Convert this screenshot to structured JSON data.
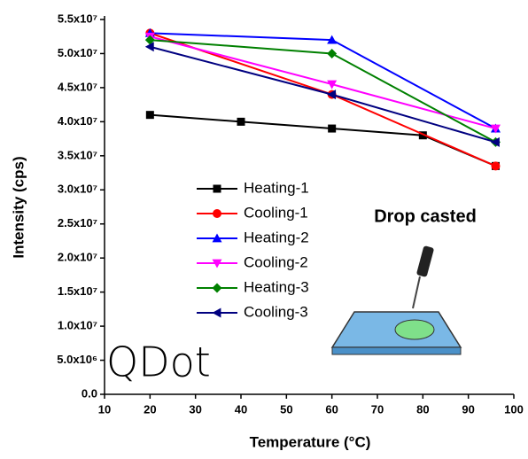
{
  "chart_data": {
    "type": "line",
    "x_label": "Temperature (°C)",
    "y_label": "Intensity (cps)",
    "xlim": [
      10,
      100
    ],
    "xticks": [
      10,
      20,
      30,
      40,
      50,
      60,
      70,
      80,
      90,
      100
    ],
    "ylim": [
      0,
      55000000
    ],
    "yticks": [
      {
        "value": 0,
        "label": "0.0"
      },
      {
        "value": 5000000,
        "label": "5.0x10⁶"
      },
      {
        "value": 10000000,
        "label": "1.0x10⁷"
      },
      {
        "value": 15000000,
        "label": "1.5x10⁷"
      },
      {
        "value": 20000000,
        "label": "2.0x10⁷"
      },
      {
        "value": 25000000,
        "label": "2.5x10⁷"
      },
      {
        "value": 30000000,
        "label": "3.0x10⁷"
      },
      {
        "value": 35000000,
        "label": "3.5x10⁷"
      },
      {
        "value": 40000000,
        "label": "4.0x10⁷"
      },
      {
        "value": 45000000,
        "label": "4.5x10⁷"
      },
      {
        "value": 50000000,
        "label": "5.0x10⁷"
      },
      {
        "value": 55000000,
        "label": "5.5x10⁷"
      }
    ],
    "legend": "center-left",
    "series": [
      {
        "name": "Heating-1",
        "color": "#000000",
        "marker": "square",
        "x": [
          20,
          40,
          60,
          80,
          96
        ],
        "values": [
          41000000,
          40000000,
          39000000,
          38000000,
          33500000
        ]
      },
      {
        "name": "Cooling-1",
        "color": "#ff0000",
        "marker": "circle",
        "x": [
          20,
          60,
          96
        ],
        "values": [
          53000000,
          44000000,
          33500000
        ]
      },
      {
        "name": "Heating-2",
        "color": "#0000ff",
        "marker": "triangle-up",
        "x": [
          20,
          60,
          96
        ],
        "values": [
          53000000,
          52000000,
          39000000
        ]
      },
      {
        "name": "Cooling-2",
        "color": "#ff00ff",
        "marker": "triangle-down",
        "x": [
          20,
          60,
          96
        ],
        "values": [
          52500000,
          45500000,
          39000000
        ]
      },
      {
        "name": "Heating-3",
        "color": "#008000",
        "marker": "diamond",
        "x": [
          20,
          60,
          96
        ],
        "values": [
          52000000,
          50000000,
          37000000
        ]
      },
      {
        "name": "Cooling-3",
        "color": "#000080",
        "marker": "triangle-left",
        "x": [
          20,
          60,
          96
        ],
        "values": [
          51000000,
          44000000,
          37000000
        ]
      }
    ],
    "annotation": "Drop casted",
    "logo": "QDot"
  }
}
